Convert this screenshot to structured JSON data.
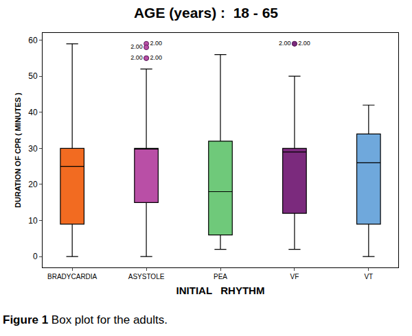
{
  "chart_data": {
    "type": "box",
    "title": "AGE (years) :  18 - 65",
    "x_label": "INITIAL   RHYTHM",
    "y_label": "DURATION OF CPR ( MINUTES )",
    "categories": [
      "BRADYCARDIA",
      "ASYSTOLE",
      "PEA",
      "VF",
      "VT"
    ],
    "series": [
      {
        "name": "BRADYCARDIA",
        "color": "#f26b21",
        "lower": 0,
        "q1": 9,
        "median": 25,
        "q3": 30,
        "upper": 59,
        "outliers": [],
        "outlier_labels": []
      },
      {
        "name": "ASYSTOLE",
        "color": "#b94fa6",
        "lower": 0,
        "q1": 15,
        "median": 30,
        "q3": 30,
        "upper": 52,
        "outliers": [
          59,
          58,
          55,
          55
        ],
        "outlier_labels": [
          "2.00",
          "2.00",
          "2.00",
          "2.00"
        ]
      },
      {
        "name": "PEA",
        "color": "#6fc97a",
        "lower": 2,
        "q1": 6,
        "median": 18,
        "q3": 32,
        "upper": 56,
        "outliers": [],
        "outlier_labels": []
      },
      {
        "name": "VF",
        "color": "#7b2a7d",
        "lower": 2,
        "q1": 12,
        "median": 29,
        "q3": 30,
        "upper": 50,
        "outliers": [
          59,
          59
        ],
        "outlier_labels": [
          "2.00",
          "2.00"
        ]
      },
      {
        "name": "VT",
        "color": "#6fa8dc",
        "lower": 0,
        "q1": 9,
        "median": 26,
        "q3": 34,
        "upper": 42,
        "outliers": [],
        "outlier_labels": []
      }
    ],
    "ylim": [
      -3,
      62
    ],
    "yticks": [
      0,
      10,
      20,
      30,
      40,
      50,
      60
    ],
    "grid": false,
    "caption": {
      "label": "Figure 1",
      "text": "Box plot for the adults."
    }
  }
}
